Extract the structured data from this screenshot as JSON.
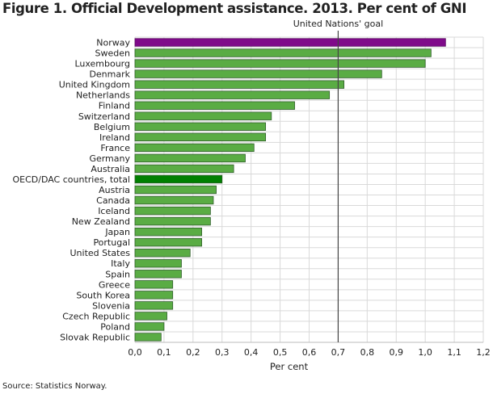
{
  "chart_data": {
    "type": "bar",
    "orientation": "horizontal",
    "title": "Figure 1. Official Development assistance. 2013. Per cent of GNI",
    "xlabel": "Per cent",
    "ylabel": "",
    "xlim": [
      0,
      1.2
    ],
    "xticks": [
      "0,0",
      "0,1",
      "0,2",
      "0,3",
      "0,4",
      "0,5",
      "0,6",
      "0,7",
      "0,8",
      "0,9",
      "1,0",
      "1,1",
      "1,2"
    ],
    "grid": true,
    "categories": [
      "Norway",
      "Sweden",
      "Luxembourg",
      "Denmark",
      "United Kingdom",
      "Netherlands",
      "Finland",
      "Switzerland",
      "Belgium",
      "Ireland",
      "France",
      "Germany",
      "Australia",
      "OECD/DAC countries, total",
      "Austria",
      "Canada",
      "Iceland",
      "New Zealand",
      "Japan",
      "Portugal",
      "United States",
      "Italy",
      "Spain",
      "Greece",
      "South Korea",
      "Slovenia",
      "Czech Republic",
      "Poland",
      "Slovak Republic"
    ],
    "values": [
      1.07,
      1.02,
      1.0,
      0.85,
      0.72,
      0.67,
      0.55,
      0.47,
      0.45,
      0.45,
      0.41,
      0.38,
      0.34,
      0.3,
      0.28,
      0.27,
      0.26,
      0.26,
      0.23,
      0.23,
      0.19,
      0.16,
      0.16,
      0.13,
      0.13,
      0.13,
      0.11,
      0.1,
      0.09
    ],
    "reference_line": {
      "value": 0.7,
      "label": "United Nations' goal"
    },
    "colors": {
      "default": "#5aac44",
      "highlight_norway": "#7f0a8a",
      "highlight_total": "#008000",
      "border": "#2f5f2a"
    }
  },
  "source": "Source: Statistics Norway."
}
